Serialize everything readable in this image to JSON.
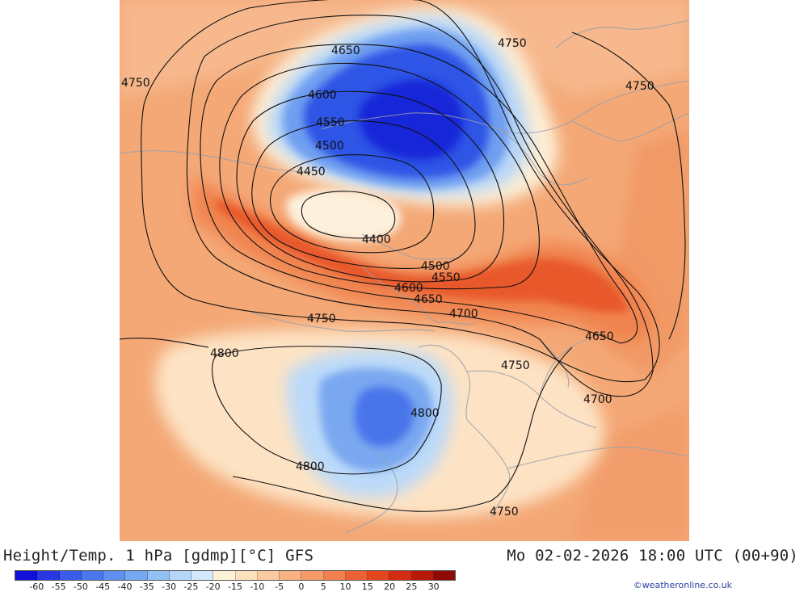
{
  "title": "Height/Temp. 1 hPa [gdmp][°C] GFS",
  "datetime": "Mo 02-02-2026 18:00 UTC (00+90)",
  "credit": "©weatheronline.co.uk",
  "colorbar": {
    "ticks": [
      "-60",
      "-55",
      "-50",
      "-45",
      "-40",
      "-35",
      "-30",
      "-25",
      "-20",
      "-15",
      "-10",
      "-5",
      "0",
      "5",
      "10",
      "15",
      "20",
      "25",
      "30"
    ],
    "colors": [
      "#1010d8",
      "#2a38e4",
      "#3a5ce8",
      "#4a78ec",
      "#5d90ef",
      "#76a8f2",
      "#93c0f5",
      "#b4d6f8",
      "#d4e8fb",
      "#fdf1d6",
      "#fde0bc",
      "#fbcaa0",
      "#f8b284",
      "#f59a68",
      "#f2804e",
      "#ec6234",
      "#e4461e",
      "#d42c12",
      "#b81a0a",
      "#8e0a04"
    ]
  },
  "contours": {
    "labels": [
      "4650",
      "4750",
      "4750",
      "4750",
      "4600",
      "4550",
      "4500",
      "4450",
      "4400",
      "4500",
      "4550",
      "4600",
      "4650",
      "4700",
      "4750",
      "4650",
      "4800",
      "4750",
      "4800",
      "4700",
      "4800",
      "4750"
    ]
  },
  "colors": {
    "background": "#ffffff",
    "map_base": "#f4a876",
    "cold_core": "#1a3fe0",
    "warm_band": "#ec5a28",
    "border_lines": "#9aa0aa",
    "contour_lines": "#111111",
    "credit": "#2a3fa0"
  }
}
